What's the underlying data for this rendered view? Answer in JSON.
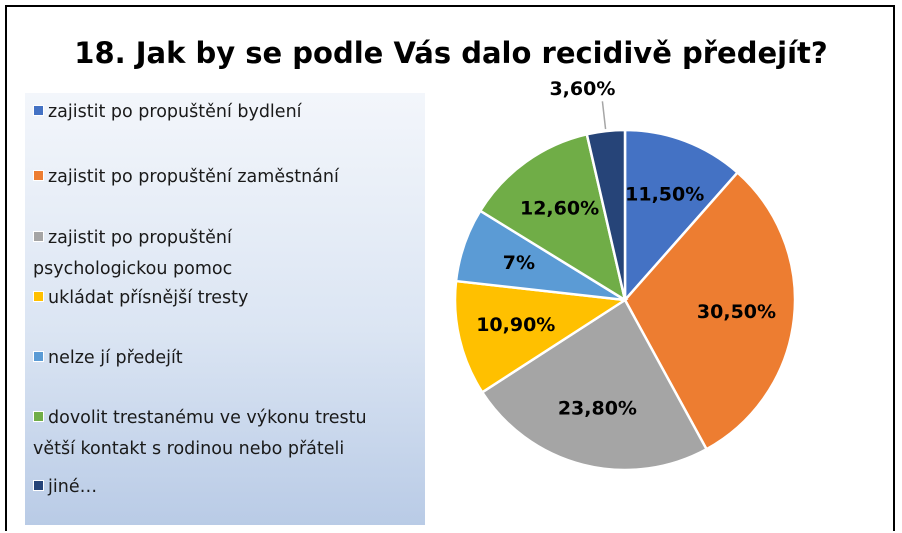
{
  "chart_data": {
    "type": "pie",
    "title": "18. Jak by se podle Vás dalo recidivě předejít?",
    "categories": [
      "zajistit po propuštění bydlení",
      "zajistit po propuštění zaměstnání",
      "zajistit po propuštění\npsychologickou pomoc",
      "ukládat přísnější tresty",
      "nelze jí předejít",
      "dovolit trestanému ve výkonu trestu\nvětší kontakt s rodinou nebo přáteli",
      "jiné…"
    ],
    "values": [
      11.5,
      30.5,
      23.8,
      10.9,
      7,
      12.6,
      3.6
    ],
    "value_labels": [
      "11,50%",
      "30,50%",
      "23,80%",
      "10,90%",
      "7%",
      "12,60%",
      "3,60%"
    ],
    "colors": [
      "#4472c4",
      "#ed7d31",
      "#a5a5a5",
      "#ffc000",
      "#5b9bd5",
      "#70ad47",
      "#264478"
    ],
    "legend": "left"
  }
}
